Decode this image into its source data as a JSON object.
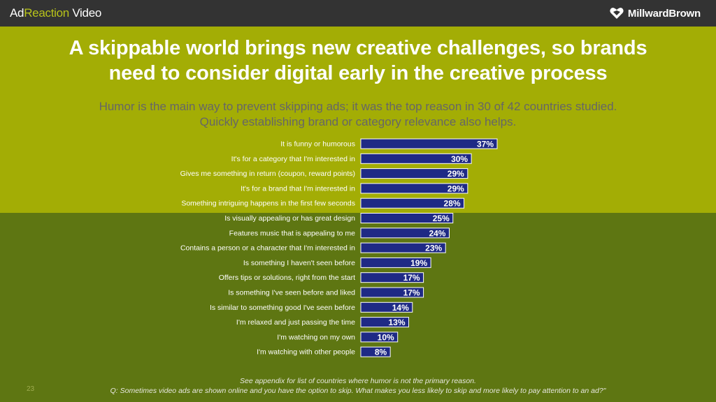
{
  "header": {
    "app_name_part1": "Ad",
    "app_name_part2": "Reaction",
    "app_name_part3": " Video",
    "logo_text": "MillwardBrown"
  },
  "slide": {
    "title_line1": "A skippable world brings new creative challenges, so brands",
    "title_line2": "need to consider digital early in the creative process",
    "subtitle_line1": "Humor is the main way to prevent skipping ads; it was the top reason in 30 of 42 countries studied.",
    "subtitle_line2": "Quickly establishing brand or category relevance also helps.",
    "footnote_line1": "See appendix for list of countries where humor is not the primary reason.",
    "footnote_line2": "Q:  Sometimes video ads are shown online and you have the option to skip. What makes you less likely to skip and more likely to pay attention to an ad?\"",
    "page_number": "23"
  },
  "colors": {
    "bar": "#1f2a85",
    "bar_border": "#ffffff",
    "label": "#ffffff",
    "band": "#a3ad05",
    "background": "#5e7612"
  },
  "chart_data": {
    "type": "bar",
    "orientation": "horizontal",
    "categories": [
      "It is funny or humorous",
      "It's for a category that I'm interested in",
      "Gives me something in return (coupon, reward points)",
      "It's for a brand that I'm interested in",
      "Something intriguing happens in the first few seconds",
      "Is visually appealing or has great design",
      "Features music that is appealing to me",
      "Contains a person or a character that I'm interested in",
      "Is something I haven't seen before",
      "Offers tips or solutions, right from the start",
      "Is something I've seen before and liked",
      "Is similar to something good I've seen before",
      "I'm relaxed and just passing the time",
      "I'm watching on my own",
      "I'm watching with other people"
    ],
    "values": [
      37,
      30,
      29,
      29,
      28,
      25,
      24,
      23,
      19,
      17,
      17,
      14,
      13,
      10,
      8
    ],
    "value_labels": [
      "37%",
      "30%",
      "29%",
      "29%",
      "28%",
      "25%",
      "24%",
      "23%",
      "19%",
      "17%",
      "17%",
      "14%",
      "13%",
      "10%",
      "8%"
    ],
    "unit": "%",
    "xlim": [
      0,
      37
    ]
  }
}
